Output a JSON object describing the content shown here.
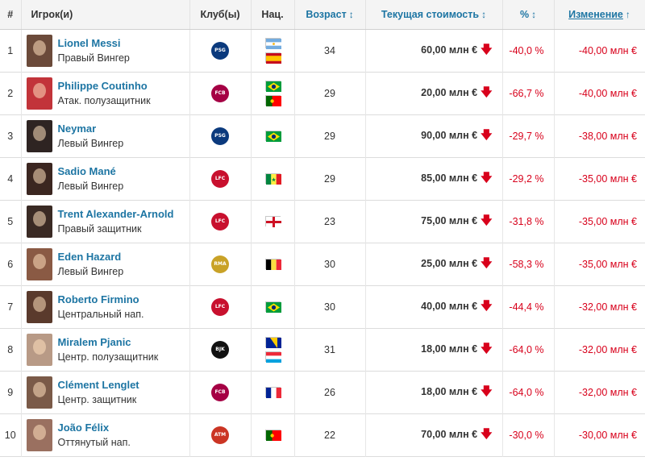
{
  "headers": {
    "rank": "#",
    "player": "Игрок(и)",
    "club": "Клуб(ы)",
    "nat": "Нац.",
    "age": "Возраст",
    "value": "Текущая стоимость",
    "pct": "%",
    "change": "Изменение"
  },
  "sort_icons": {
    "both": "↕",
    "up": "↑"
  },
  "down_arrow": "🡇",
  "rows": [
    {
      "rank": "1",
      "name": "Lionel Messi",
      "position": "Правый Вингер",
      "club": "PSG",
      "club_color": "#0b3a7d",
      "flags": [
        "argentina",
        "spain"
      ],
      "age": "34",
      "value": "60,00 млн €",
      "pct": "-40,0 %",
      "change": "-40,00 млн €",
      "avatar_color": "#6b4a3a"
    },
    {
      "rank": "2",
      "name": "Philippe Coutinho",
      "position": "Атак. полузащитник",
      "club": "FCB",
      "club_color": "#a50044",
      "flags": [
        "brazil",
        "portugal"
      ],
      "age": "29",
      "value": "20,00 млн €",
      "pct": "-66,7 %",
      "change": "-40,00 млн €",
      "avatar_color": "#c2343a"
    },
    {
      "rank": "3",
      "name": "Neymar",
      "position": "Левый Вингер",
      "club": "PSG",
      "club_color": "#0b3a7d",
      "flags": [
        "brazil"
      ],
      "age": "29",
      "value": "90,00 млн €",
      "pct": "-29,7 %",
      "change": "-38,00 млн €",
      "avatar_color": "#2e2422"
    },
    {
      "rank": "4",
      "name": "Sadio Mané",
      "position": "Левый Вингер",
      "club": "LFC",
      "club_color": "#c8102e",
      "flags": [
        "senegal"
      ],
      "age": "29",
      "value": "85,00 млн €",
      "pct": "-29,2 %",
      "change": "-35,00 млн €",
      "avatar_color": "#3b2620"
    },
    {
      "rank": "5",
      "name": "Trent Alexander-Arnold",
      "position": "Правый защитник",
      "club": "LFC",
      "club_color": "#c8102e",
      "flags": [
        "england"
      ],
      "age": "23",
      "value": "75,00 млн €",
      "pct": "-31,8 %",
      "change": "-35,00 млн €",
      "avatar_color": "#3a2a24"
    },
    {
      "rank": "6",
      "name": "Eden Hazard",
      "position": "Левый Вингер",
      "club": "RMA",
      "club_color": "#c9a227",
      "flags": [
        "belgium"
      ],
      "age": "30",
      "value": "25,00 млн €",
      "pct": "-58,3 %",
      "change": "-35,00 млн €",
      "avatar_color": "#8a5a44"
    },
    {
      "rank": "7",
      "name": "Roberto Firmino",
      "position": "Центральный нап.",
      "club": "LFC",
      "club_color": "#c8102e",
      "flags": [
        "brazil"
      ],
      "age": "30",
      "value": "40,00 млн €",
      "pct": "-44,4 %",
      "change": "-32,00 млн €",
      "avatar_color": "#5a3a2c"
    },
    {
      "rank": "8",
      "name": "Miralem Pjanic",
      "position": "Центр. полузащитник",
      "club": "BJK",
      "club_color": "#111111",
      "flags": [
        "bosnia",
        "luxembourg"
      ],
      "age": "31",
      "value": "18,00 млн €",
      "pct": "-64,0 %",
      "change": "-32,00 млн €",
      "avatar_color": "#b89a86"
    },
    {
      "rank": "9",
      "name": "Clément Lenglet",
      "position": "Центр. защитник",
      "club": "FCB",
      "club_color": "#a50044",
      "flags": [
        "france"
      ],
      "age": "26",
      "value": "18,00 млн €",
      "pct": "-64,0 %",
      "change": "-32,00 млн €",
      "avatar_color": "#7a5a48"
    },
    {
      "rank": "10",
      "name": "João Félix",
      "position": "Оттянутый нап.",
      "club": "ATM",
      "club_color": "#cb3524",
      "flags": [
        "portugal"
      ],
      "age": "22",
      "value": "70,00 млн €",
      "pct": "-30,0 %",
      "change": "-30,00 млн €",
      "avatar_color": "#9a7060"
    }
  ]
}
